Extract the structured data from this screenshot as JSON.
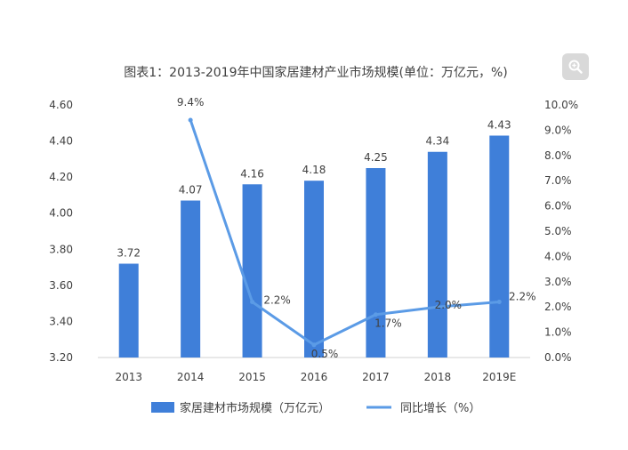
{
  "chart_data": {
    "type": "bar+line",
    "title": "图表1：2013-2019年中国家居建材产业市场规模(单位：万亿元，%)",
    "categories": [
      "2013",
      "2014",
      "2015",
      "2016",
      "2017",
      "2018",
      "2019E"
    ],
    "series": [
      {
        "name": "家居建材市场规模（万亿元）",
        "type": "bar",
        "axis": "left",
        "values": [
          3.72,
          4.07,
          4.16,
          4.18,
          4.25,
          4.34,
          4.43
        ],
        "labels": [
          "3.72",
          "4.07",
          "4.16",
          "4.18",
          "4.25",
          "4.34",
          "4.43"
        ]
      },
      {
        "name": "同比增长（%）",
        "type": "line",
        "axis": "right",
        "values": [
          null,
          9.4,
          2.2,
          0.5,
          1.7,
          2.0,
          2.2
        ],
        "labels": [
          "",
          "9.4%",
          "2.2%",
          "0.5%",
          "1.7%",
          "2.0%",
          "2.2%"
        ]
      }
    ],
    "y_left": {
      "ylim": [
        3.2,
        4.6
      ],
      "ticks": [
        "3.20",
        "3.40",
        "3.60",
        "3.80",
        "4.00",
        "4.20",
        "4.40",
        "4.60"
      ]
    },
    "y_right": {
      "ylim": [
        0,
        10
      ],
      "ticks": [
        "0.0%",
        "1.0%",
        "2.0%",
        "3.0%",
        "4.0%",
        "5.0%",
        "6.0%",
        "7.0%",
        "8.0%",
        "9.0%",
        "10.0%"
      ]
    },
    "grid": false,
    "legend_position": "bottom"
  },
  "colors": {
    "bar": "#3f7fd9",
    "line": "#5b9be6",
    "text": "#404040",
    "axis": "#d0d0d0",
    "zoom_button": "#d9d9d9"
  },
  "toolbar": {
    "zoom_icon": "zoom-icon"
  }
}
